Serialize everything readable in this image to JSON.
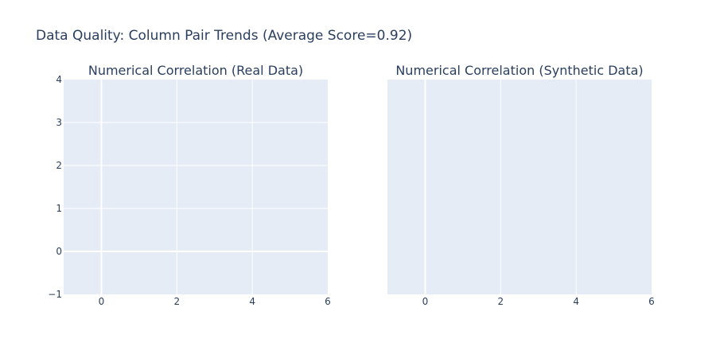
{
  "title": "Data Quality: Column Pair Trends (Average Score=0.92)",
  "colors": {
    "plot_bg": "#E5ECF6",
    "grid": "#ffffff",
    "text": "#2a3f5f",
    "page_bg": "#ffffff"
  },
  "chart_data": [
    {
      "type": "heatmap",
      "title": "Numerical Correlation (Real Data)",
      "xlim": [
        -1,
        6
      ],
      "ylim": [
        -1,
        4
      ],
      "x_ticks": [
        0,
        2,
        4,
        6
      ],
      "y_ticks": [
        -1,
        0,
        1,
        2,
        3,
        4
      ],
      "x_tick_labels": [
        "0",
        "2",
        "4",
        "6"
      ],
      "y_tick_labels": [
        "−1",
        "0",
        "1",
        "2",
        "3",
        "4"
      ],
      "grid": true,
      "values": []
    },
    {
      "type": "heatmap",
      "title": "Numerical Correlation (Synthetic Data)",
      "xlim": [
        -1,
        6
      ],
      "ylim": [
        -1,
        4
      ],
      "x_ticks": [
        0,
        2,
        4,
        6
      ],
      "y_ticks": [],
      "x_tick_labels": [
        "0",
        "2",
        "4",
        "6"
      ],
      "y_tick_labels": [],
      "grid": true,
      "values": []
    }
  ]
}
